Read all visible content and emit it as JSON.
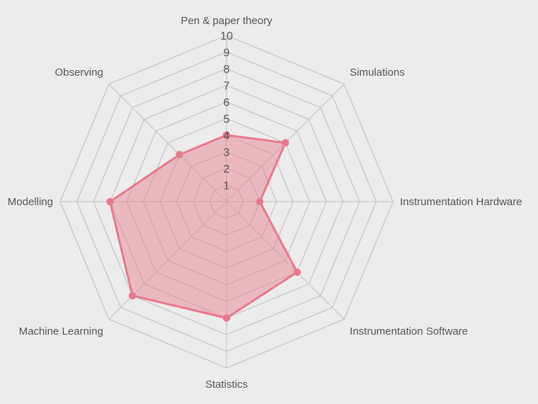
{
  "chart_data": {
    "type": "radar",
    "axes": [
      "Pen & paper theory",
      "Simulations",
      "Instrumentation Hardware",
      "Instrumentation Software",
      "Statistics",
      "Machine Learning",
      "Modelling",
      "Observing"
    ],
    "series": [
      {
        "values": [
          4,
          5,
          2,
          6,
          7,
          8,
          7,
          4
        ],
        "color": "#e8798c",
        "fill_color": "rgba(232, 121, 140, 0.45)"
      }
    ],
    "r_range": [
      0,
      10
    ],
    "ticks": [
      "1",
      "2",
      "3",
      "4",
      "5",
      "6",
      "7",
      "8",
      "9",
      "10"
    ],
    "grid": true,
    "grid_shape": "octagon",
    "legend": "none"
  }
}
